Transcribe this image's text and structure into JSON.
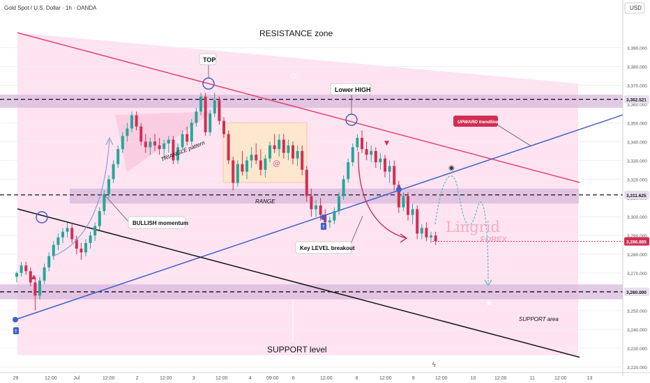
{
  "header": {
    "symbol": "Gold Spot / U.S. Dollar · 1h · OANDA",
    "currency": "USD"
  },
  "chart_data": {
    "type": "candlestick",
    "ylim": [
      3217,
      3408
    ],
    "y_ticks": [
      3220,
      3230,
      3240,
      3250,
      3260,
      3270,
      3280,
      3290,
      3300,
      3310,
      3320,
      3330,
      3340,
      3350,
      3360,
      3370,
      3380,
      3390
    ],
    "y_tick_labels": [
      "3,220.000",
      "3,230.000",
      "3,240.000",
      "3,250.000",
      "3,260.000",
      "3,270.000",
      "3,280.000",
      "3,290.000",
      "3,300.000",
      "3,310.000",
      "3,320.000",
      "3,330.000",
      "3,340.000",
      "3,350.000",
      "3,360.000",
      "3,370.000",
      "3,380.000",
      "3,390.000"
    ],
    "x_labels": [
      "29",
      "12:00",
      "Jul",
      "12:00",
      "2",
      "12:00",
      "3",
      "12:00",
      "4",
      "09:00",
      "6",
      "12:00",
      "8",
      "12:00",
      "9",
      "12:00",
      "10",
      "12:00",
      "11",
      "12:00",
      "13"
    ],
    "x_positions_bars": [
      0,
      8,
      16,
      24,
      32,
      40,
      48,
      56,
      64,
      72,
      80,
      88,
      96,
      104,
      112,
      120,
      128,
      136,
      144,
      152,
      160
    ],
    "price_levels": {
      "resistance_band": [
        3358,
        3365
      ],
      "resistance_line": 3362.521,
      "key_level_band": [
        3307,
        3315
      ],
      "key_level": 3311.625,
      "current_price": 3286.885,
      "support_band": [
        3256,
        3264
      ],
      "support_line": 3260.0
    },
    "price_badges": [
      {
        "text": "3,362.521",
        "value": 3362.521,
        "color": "#e6e0ef",
        "text_color": "#111111"
      },
      {
        "text": "3,311.625",
        "value": 3311.625,
        "color": "#e6e0ef",
        "text_color": "#111111"
      },
      {
        "text": "3,286.885",
        "value": 3286.885,
        "color": "#d12e52",
        "text_color": "#ffffff"
      },
      {
        "text": "3,260.000",
        "value": 3260.0,
        "color": "#e6e0ef",
        "text_color": "#111111"
      }
    ],
    "candles": [
      [
        3268,
        3271,
        3265,
        3270
      ],
      [
        3270,
        3276,
        3268,
        3274
      ],
      [
        3274,
        3276,
        3269,
        3271
      ],
      [
        3271,
        3273,
        3263,
        3265
      ],
      [
        3265,
        3268,
        3250,
        3258
      ],
      [
        3258,
        3268,
        3256,
        3266
      ],
      [
        3266,
        3275,
        3264,
        3273
      ],
      [
        3273,
        3281,
        3271,
        3279
      ],
      [
        3279,
        3287,
        3277,
        3285
      ],
      [
        3285,
        3291,
        3282,
        3289
      ],
      [
        3289,
        3294,
        3286,
        3292
      ],
      [
        3292,
        3297,
        3289,
        3294
      ],
      [
        3294,
        3296,
        3286,
        3288
      ],
      [
        3288,
        3290,
        3280,
        3283
      ],
      [
        3283,
        3286,
        3277,
        3281
      ],
      [
        3281,
        3288,
        3279,
        3286
      ],
      [
        3286,
        3292,
        3283,
        3290
      ],
      [
        3290,
        3297,
        3287,
        3295
      ],
      [
        3295,
        3305,
        3293,
        3303
      ],
      [
        3303,
        3314,
        3301,
        3312
      ],
      [
        3312,
        3322,
        3310,
        3320
      ],
      [
        3320,
        3330,
        3318,
        3328
      ],
      [
        3328,
        3338,
        3326,
        3336
      ],
      [
        3336,
        3345,
        3334,
        3343
      ],
      [
        3343,
        3350,
        3340,
        3347
      ],
      [
        3347,
        3356,
        3345,
        3354
      ],
      [
        3354,
        3356,
        3346,
        3348
      ],
      [
        3348,
        3350,
        3338,
        3340
      ],
      [
        3340,
        3344,
        3334,
        3337
      ],
      [
        3337,
        3342,
        3333,
        3340
      ],
      [
        3340,
        3344,
        3335,
        3338
      ],
      [
        3338,
        3342,
        3333,
        3336
      ],
      [
        3336,
        3341,
        3331,
        3339
      ],
      [
        3339,
        3343,
        3334,
        3341
      ],
      [
        3341,
        3343,
        3328,
        3330
      ],
      [
        3330,
        3339,
        3328,
        3337
      ],
      [
        3337,
        3346,
        3335,
        3344
      ],
      [
        3344,
        3348,
        3338,
        3340
      ],
      [
        3340,
        3352,
        3338,
        3350
      ],
      [
        3350,
        3358,
        3348,
        3356
      ],
      [
        3356,
        3366,
        3354,
        3364
      ],
      [
        3364,
        3366,
        3343,
        3345
      ],
      [
        3345,
        3357,
        3343,
        3355
      ],
      [
        3355,
        3366,
        3353,
        3362
      ],
      [
        3362,
        3364,
        3349,
        3351
      ],
      [
        3351,
        3353,
        3342,
        3344
      ],
      [
        3344,
        3346,
        3328,
        3330
      ],
      [
        3330,
        3332,
        3314,
        3318
      ],
      [
        3318,
        3330,
        3316,
        3328
      ],
      [
        3328,
        3335,
        3322,
        3324
      ],
      [
        3324,
        3332,
        3320,
        3330
      ],
      [
        3330,
        3337,
        3326,
        3333
      ],
      [
        3333,
        3339,
        3328,
        3330
      ],
      [
        3330,
        3336,
        3322,
        3325
      ],
      [
        3325,
        3333,
        3321,
        3331
      ],
      [
        3331,
        3340,
        3329,
        3338
      ],
      [
        3338,
        3344,
        3334,
        3336
      ],
      [
        3336,
        3344,
        3332,
        3341
      ],
      [
        3341,
        3344,
        3331,
        3334
      ],
      [
        3334,
        3341,
        3330,
        3338
      ],
      [
        3338,
        3340,
        3328,
        3331
      ],
      [
        3331,
        3338,
        3327,
        3335
      ],
      [
        3335,
        3338,
        3322,
        3325
      ],
      [
        3325,
        3327,
        3308,
        3311
      ],
      [
        3311,
        3315,
        3300,
        3304
      ],
      [
        3304,
        3309,
        3300,
        3306
      ],
      [
        3306,
        3310,
        3298,
        3301
      ],
      [
        3301,
        3304,
        3294,
        3297
      ],
      [
        3297,
        3300,
        3294,
        3298
      ],
      [
        3298,
        3305,
        3296,
        3303
      ],
      [
        3303,
        3313,
        3301,
        3311
      ],
      [
        3311,
        3322,
        3309,
        3320
      ],
      [
        3320,
        3331,
        3318,
        3329
      ],
      [
        3329,
        3339,
        3327,
        3337
      ],
      [
        3337,
        3344,
        3335,
        3342
      ],
      [
        3342,
        3346,
        3334,
        3336
      ],
      [
        3336,
        3340,
        3330,
        3333
      ],
      [
        3333,
        3338,
        3329,
        3335
      ],
      [
        3335,
        3337,
        3326,
        3329
      ],
      [
        3329,
        3334,
        3325,
        3331
      ],
      [
        3331,
        3333,
        3321,
        3324
      ],
      [
        3324,
        3330,
        3318,
        3327
      ],
      [
        3327,
        3330,
        3314,
        3317
      ],
      [
        3317,
        3319,
        3302,
        3305
      ],
      [
        3305,
        3313,
        3303,
        3311
      ],
      [
        3311,
        3313,
        3298,
        3301
      ],
      [
        3301,
        3307,
        3296,
        3304
      ],
      [
        3304,
        3306,
        3288,
        3291
      ],
      [
        3291,
        3296,
        3288,
        3294
      ],
      [
        3294,
        3297,
        3287,
        3289
      ],
      [
        3289,
        3292,
        3286,
        3290
      ],
      [
        3290,
        3292,
        3285,
        3287
      ]
    ]
  },
  "annotations": {
    "resistance_zone": "RESISTANCE zone",
    "top": "TOP",
    "lower_high": "Lower HIGH",
    "upward_trendline": "UPWARD trendline",
    "triangle_pattern": "TRIANGLE pattern",
    "range": "RANGE",
    "bullish_momentum": "BULLISH momentum",
    "key_level_breakout": "Key LEVEL breakout",
    "support_area": "SUPPORT area",
    "support_level": "SUPPORT level",
    "watermark_main": "Lingrid",
    "watermark_sub": "FOREX"
  },
  "colors": {
    "bull": "#26a69a",
    "bear": "#d12e52",
    "resistance_line": "#e0416e",
    "trendline_up": "#3f5fc8",
    "trendline_down": "#111111",
    "zone_fill": "#ffd9ec",
    "band_fill": "#d6b5da",
    "range_fill": "#ffe6c8",
    "projection": "#4fc3c3"
  }
}
